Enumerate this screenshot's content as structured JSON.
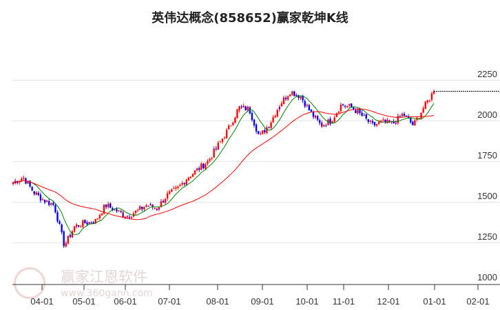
{
  "chart_data": {
    "type": "candlestick",
    "title": "英伟达概念(858652)赢家乾坤K线",
    "ylim": [
      1000,
      2250
    ],
    "yticks": [
      1000,
      1250,
      1500,
      1750,
      2000,
      2250
    ],
    "xticks": [
      "04-01",
      "05-01",
      "06-01",
      "07-01",
      "08-01",
      "09-01",
      "10-01",
      "11-01",
      "12-01",
      "01-01",
      "02-01"
    ],
    "grid": true,
    "waypoints_close": [
      1620,
      1650,
      1560,
      1510,
      1480,
      1230,
      1350,
      1370,
      1380,
      1480,
      1450,
      1410,
      1440,
      1480,
      1460,
      1540,
      1580,
      1650,
      1700,
      1750,
      1850,
      1950,
      2080,
      2070,
      1900,
      1980,
      2100,
      2180,
      2150,
      2050,
      1970,
      2000,
      2100,
      2080,
      2030,
      1970,
      1990,
      1980,
      2040,
      1970,
      2080,
      2180
    ],
    "last_price": 2180,
    "colors": {
      "up": "#ff0000",
      "down": "#0000ff",
      "special": "#800080",
      "ma_short": "#008000",
      "ma_long": "#ff0000"
    }
  },
  "watermark": {
    "brand": "赢家江恩软件",
    "url": "www.360gann.com",
    "seal": "江赢恩家"
  }
}
